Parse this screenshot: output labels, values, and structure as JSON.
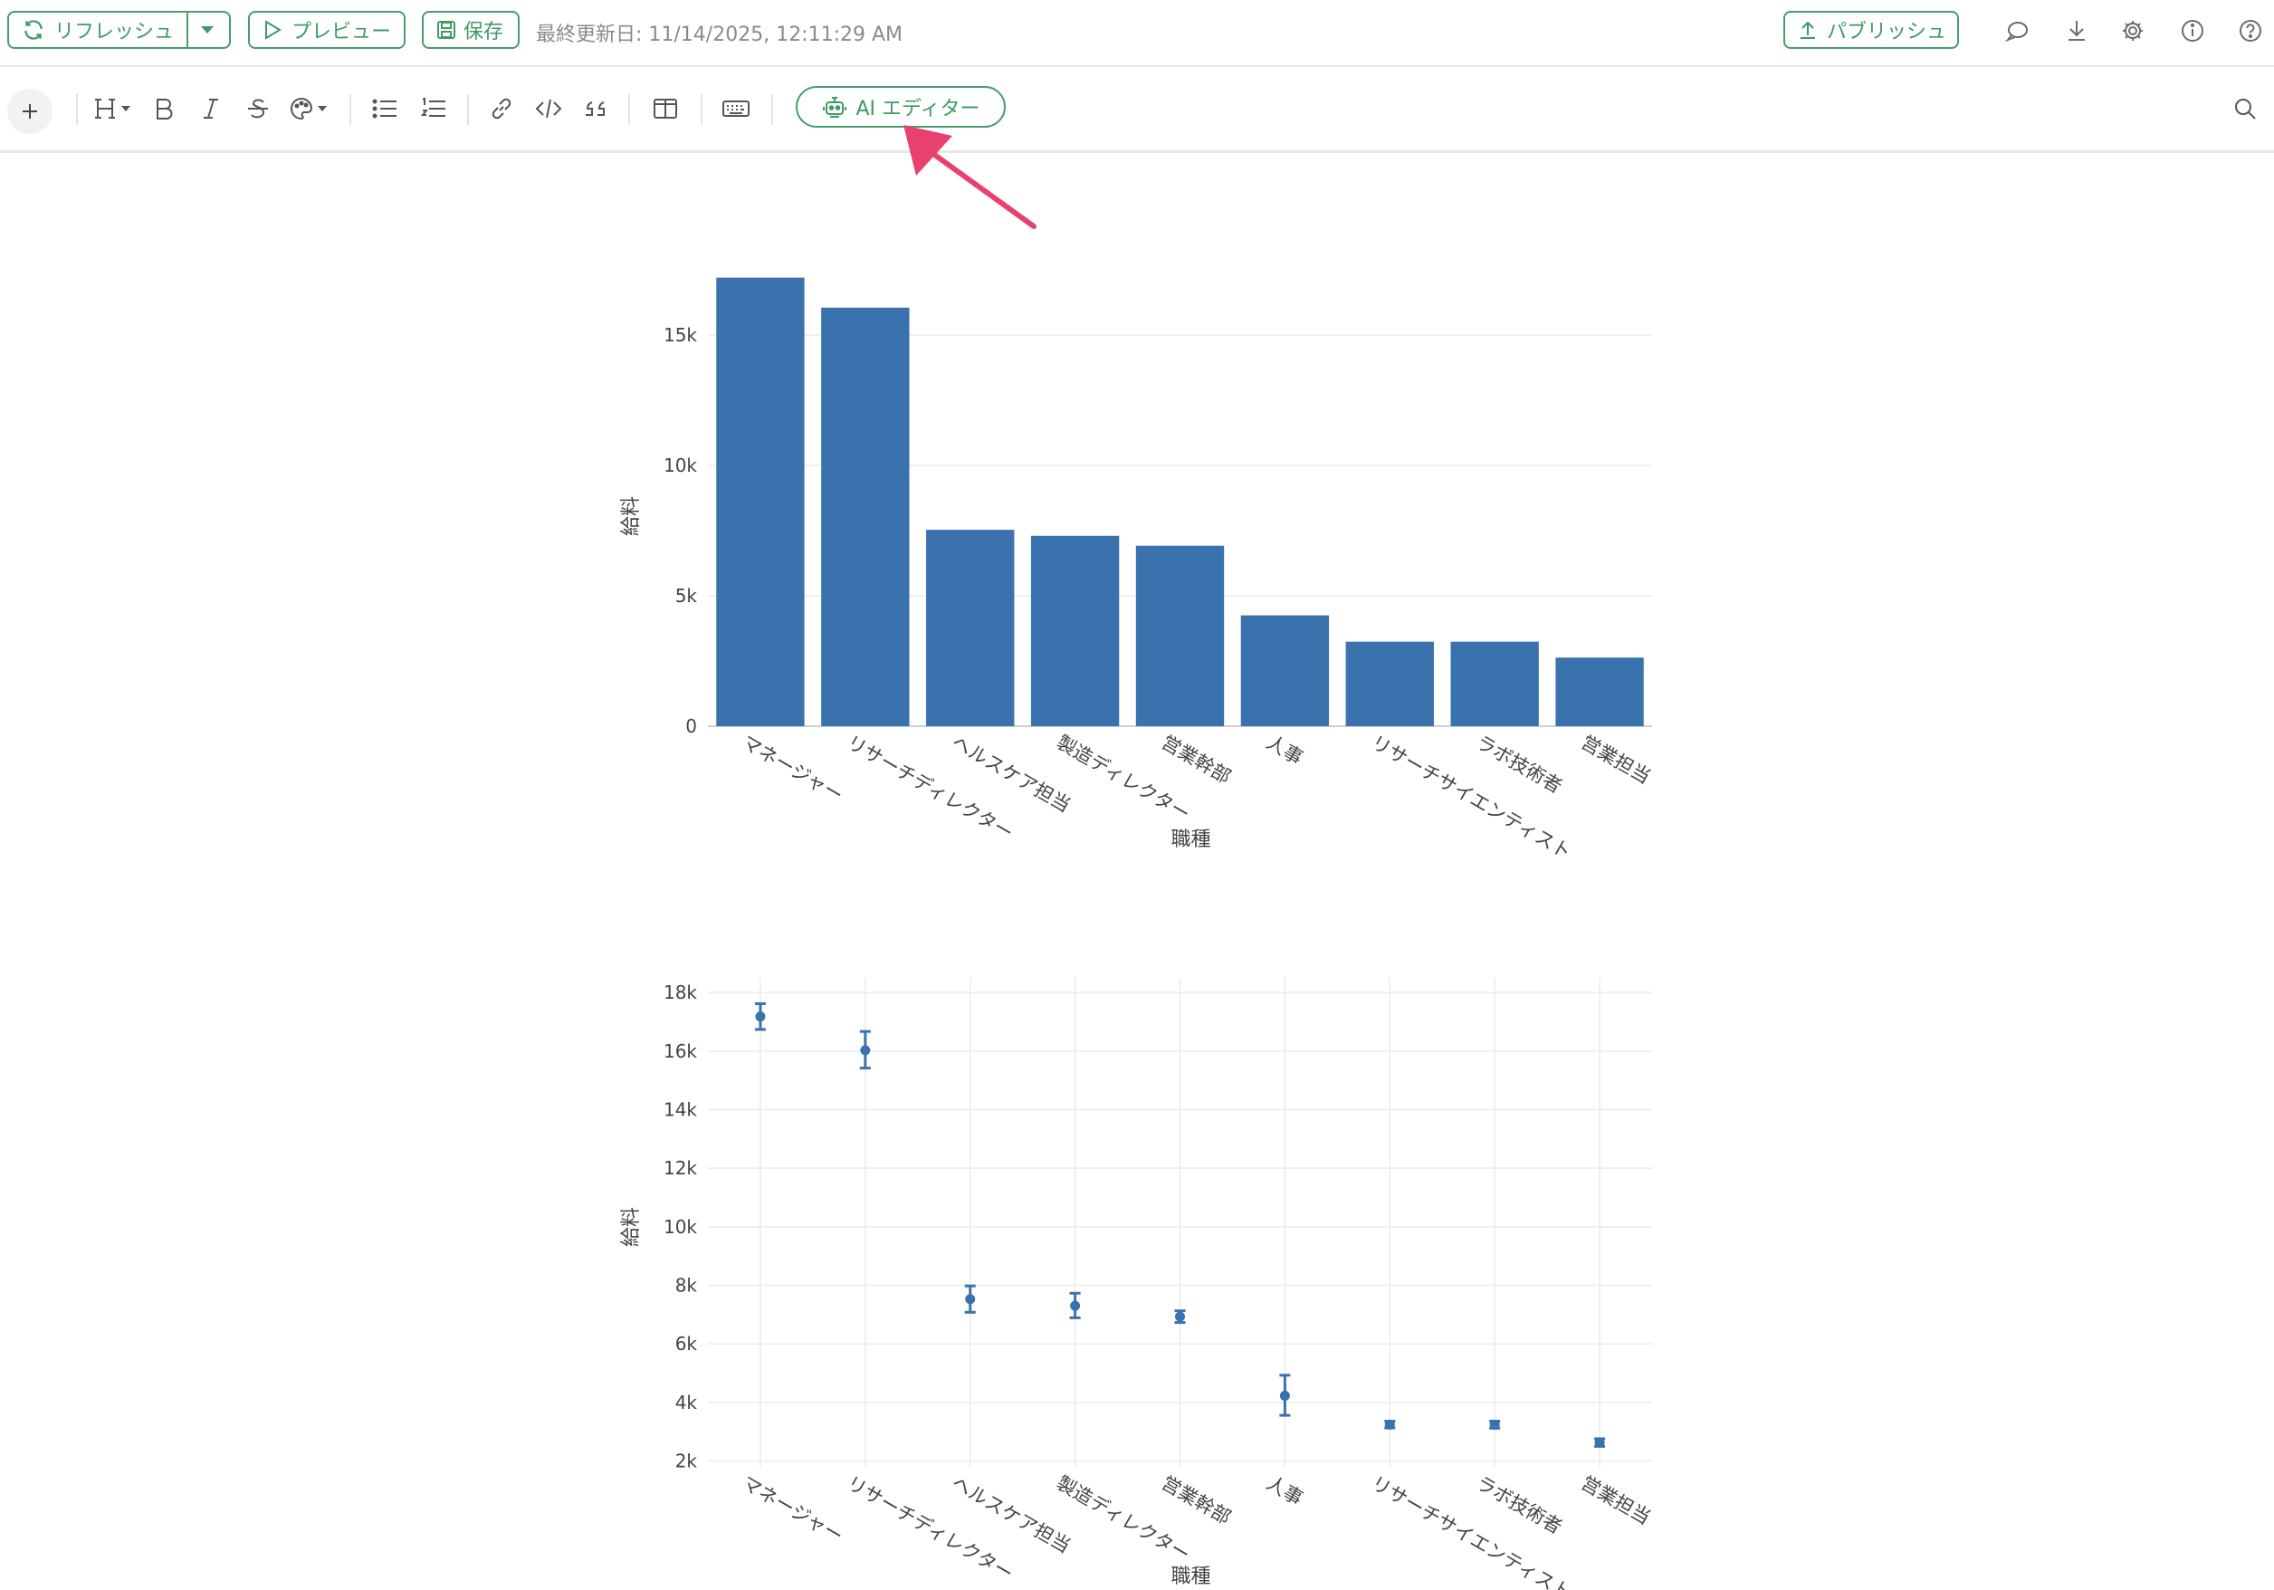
{
  "header": {
    "refresh_label": "リフレッシュ",
    "preview_label": "プレビュー",
    "save_label": "保存",
    "last_updated": "最終更新日: 11/14/2025, 12:11:29 AM",
    "publish_label": "パブリッシュ"
  },
  "toolbar": {
    "ai_editor_label": "AI エディター"
  },
  "colors": {
    "accent_green": "#4a9d6a",
    "bar_blue": "#3a72ad",
    "arrow_pink": "#e8416e"
  },
  "chart_data": [
    {
      "type": "bar",
      "categories": [
        "マネージャー",
        "リサーチディレクター",
        "ヘルスケア担当",
        "製造ディレクター",
        "営業幹部",
        "人事",
        "リサーチサイエンティスト",
        "ラボ技術者",
        "営業担当"
      ],
      "values": [
        17200,
        16050,
        7530,
        7300,
        6920,
        4250,
        3240,
        3240,
        2630
      ],
      "xlabel": "職種",
      "ylabel": "給料",
      "ylim": [
        0,
        17500
      ],
      "yticks": [
        0,
        5000,
        10000,
        15000
      ],
      "ytick_labels": [
        "0",
        "5k",
        "10k",
        "15k"
      ],
      "grid": "horizontal"
    },
    {
      "type": "scatter",
      "error_bars": true,
      "categories": [
        "マネージャー",
        "リサーチディレクター",
        "ヘルスケア担当",
        "製造ディレクター",
        "営業幹部",
        "人事",
        "リサーチサイエンティスト",
        "ラボ技術者",
        "営業担当"
      ],
      "values": [
        17180,
        16030,
        7530,
        7300,
        6930,
        4230,
        3240,
        3240,
        2630
      ],
      "error_low": [
        16740,
        15420,
        7080,
        6890,
        6730,
        3560,
        3130,
        3120,
        2500
      ],
      "error_high": [
        17620,
        16670,
        7980,
        7730,
        7130,
        4930,
        3360,
        3360,
        2760
      ],
      "xlabel": "職種",
      "ylabel": "給料",
      "ylim": [
        1800,
        18500
      ],
      "yticks": [
        2000,
        4000,
        6000,
        8000,
        10000,
        12000,
        14000,
        16000,
        18000
      ],
      "ytick_labels": [
        "2k",
        "4k",
        "6k",
        "8k",
        "10k",
        "12k",
        "14k",
        "16k",
        "18k"
      ],
      "grid": "both"
    }
  ]
}
